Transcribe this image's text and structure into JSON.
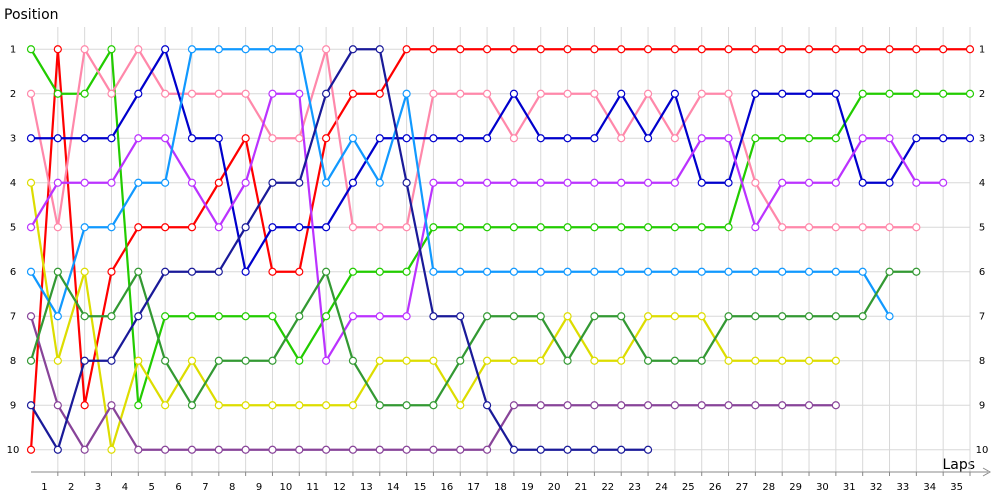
{
  "chart_data": {
    "type": "line",
    "y_label": "Position",
    "x_label": "Laps",
    "x": [
      0,
      1,
      2,
      3,
      4,
      5,
      6,
      7,
      8,
      9,
      10,
      11,
      12,
      13,
      14,
      15,
      16,
      17,
      18,
      19,
      20,
      21,
      22,
      23,
      24,
      25,
      26,
      27,
      28,
      29,
      30,
      31,
      32,
      33,
      34,
      35
    ],
    "xlim": [
      0,
      35
    ],
    "xticks": [
      1,
      2,
      3,
      4,
      5,
      6,
      7,
      8,
      9,
      10,
      11,
      12,
      13,
      14,
      15,
      16,
      17,
      18,
      19,
      20,
      21,
      22,
      23,
      24,
      25,
      26,
      27,
      28,
      29,
      30,
      31,
      32,
      33,
      34,
      35
    ],
    "ylim": [
      10.5,
      0.5
    ],
    "yticks": [
      1,
      2,
      3,
      4,
      5,
      6,
      7,
      8,
      9,
      10
    ],
    "grid": true,
    "series": [
      {
        "color": "#ff0000",
        "values": [
          10,
          1,
          9,
          6,
          5,
          5,
          5,
          4,
          3,
          6,
          6,
          3,
          2,
          2,
          1,
          1,
          1,
          1,
          1,
          1,
          1,
          1,
          1,
          1,
          1,
          1,
          1,
          1,
          1,
          1,
          1,
          1,
          1,
          1,
          1,
          1
        ]
      },
      {
        "color": "#22cc00",
        "values": [
          1,
          2,
          2,
          1,
          9,
          7,
          7,
          7,
          7,
          7,
          8,
          7,
          6,
          6,
          6,
          5,
          5,
          5,
          5,
          5,
          5,
          5,
          5,
          5,
          5,
          5,
          5,
          3,
          3,
          3,
          3,
          2,
          2,
          2,
          2,
          2
        ]
      },
      {
        "color": "#ff88aa",
        "values": [
          2,
          5,
          1,
          2,
          1,
          2,
          2,
          2,
          2,
          3,
          3,
          1,
          5,
          5,
          5,
          2,
          2,
          2,
          3,
          2,
          2,
          2,
          3,
          2,
          3,
          2,
          2,
          4,
          5,
          5,
          5,
          5,
          5,
          5,
          null,
          null
        ]
      },
      {
        "color": "#0000cc",
        "values": [
          3,
          3,
          3,
          3,
          2,
          1,
          3,
          3,
          6,
          5,
          5,
          5,
          4,
          3,
          3,
          3,
          3,
          3,
          2,
          3,
          3,
          3,
          2,
          3,
          2,
          4,
          4,
          2,
          2,
          2,
          2,
          4,
          4,
          3,
          3,
          3
        ]
      },
      {
        "color": "#dddd00",
        "values": [
          4,
          8,
          6,
          10,
          8,
          9,
          8,
          9,
          9,
          9,
          9,
          9,
          9,
          8,
          8,
          8,
          9,
          8,
          8,
          8,
          7,
          8,
          8,
          7,
          7,
          7,
          8,
          8,
          8,
          8,
          8,
          null,
          null,
          null,
          null,
          null
        ]
      },
      {
        "color": "#bb33ff",
        "values": [
          5,
          4,
          4,
          4,
          3,
          3,
          4,
          5,
          4,
          2,
          2,
          8,
          7,
          7,
          7,
          4,
          4,
          4,
          4,
          4,
          4,
          4,
          4,
          4,
          4,
          3,
          3,
          5,
          4,
          4,
          4,
          3,
          3,
          4,
          4,
          null
        ]
      },
      {
        "color": "#1199ff",
        "values": [
          6,
          7,
          5,
          5,
          4,
          4,
          1,
          1,
          1,
          1,
          1,
          4,
          3,
          4,
          2,
          6,
          6,
          6,
          6,
          6,
          6,
          6,
          6,
          6,
          6,
          6,
          6,
          6,
          6,
          6,
          6,
          6,
          7,
          null,
          null,
          null
        ]
      },
      {
        "color": "#884499",
        "values": [
          7,
          9,
          10,
          9,
          10,
          10,
          10,
          10,
          10,
          10,
          10,
          10,
          10,
          10,
          10,
          10,
          10,
          10,
          9,
          9,
          9,
          9,
          9,
          9,
          9,
          9,
          9,
          9,
          9,
          9,
          9,
          null,
          null,
          null,
          null,
          null
        ]
      },
      {
        "color": "#339933",
        "values": [
          8,
          6,
          7,
          7,
          6,
          8,
          9,
          8,
          8,
          8,
          7,
          6,
          8,
          9,
          9,
          9,
          8,
          7,
          7,
          7,
          8,
          7,
          7,
          8,
          8,
          8,
          7,
          7,
          7,
          7,
          7,
          7,
          6,
          6,
          null,
          null
        ]
      },
      {
        "color": "#1a1a99",
        "values": [
          9,
          10,
          8,
          8,
          7,
          6,
          6,
          6,
          5,
          4,
          4,
          2,
          1,
          1,
          4,
          7,
          7,
          9,
          10,
          10,
          10,
          10,
          10,
          10,
          null,
          null,
          null,
          null,
          null,
          null,
          null,
          null,
          null,
          null,
          null,
          null
        ]
      }
    ]
  }
}
